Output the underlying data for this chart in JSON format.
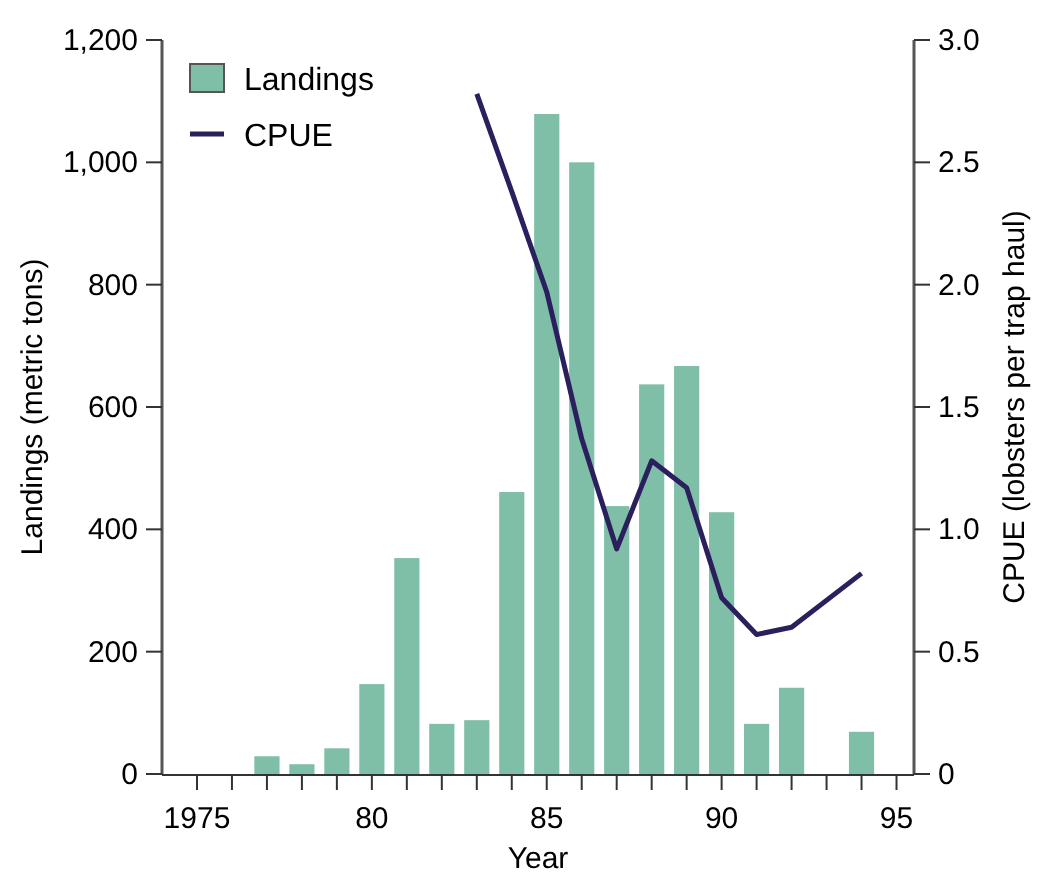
{
  "chart_data": {
    "type": "bar",
    "xlabel": "Year",
    "ylabel": "Landings (metric tons)",
    "y2label": "CPUE (lobsters per trap haul)",
    "x": [
      1977,
      1978,
      1979,
      1980,
      1981,
      1982,
      1983,
      1984,
      1985,
      1986,
      1987,
      1988,
      1989,
      1990,
      1991,
      1992,
      1994
    ],
    "series": [
      {
        "name": "Landings",
        "color": "#7fbfa8",
        "values": [
          29,
          16,
          42,
          147,
          353,
          82,
          88,
          461,
          1079,
          1000,
          438,
          637,
          667,
          428,
          82,
          141,
          69
        ]
      },
      {
        "name": "CPUE",
        "type": "line",
        "axis": "y2",
        "color": "#2b1f5e",
        "x": [
          1983,
          1984,
          1985,
          1986,
          1987,
          1988,
          1989,
          1990,
          1991,
          1992,
          1994
        ],
        "values": [
          2.78,
          2.38,
          1.97,
          1.37,
          0.92,
          1.28,
          1.17,
          0.72,
          0.57,
          0.6,
          0.82
        ]
      }
    ],
    "xlim": [
      1974,
      1995.5
    ],
    "xticks": [
      1975,
      {
        "value": 1976,
        "label": null
      },
      {
        "value": 1977,
        "label": null
      },
      {
        "value": 1978,
        "label": null
      },
      {
        "value": 1979,
        "label": null
      },
      {
        "value": 1980,
        "label": "80"
      },
      {
        "value": 1981,
        "label": null
      },
      {
        "value": 1982,
        "label": null
      },
      {
        "value": 1983,
        "label": null
      },
      {
        "value": 1984,
        "label": null
      },
      {
        "value": 1985,
        "label": "85"
      },
      {
        "value": 1986,
        "label": null
      },
      {
        "value": 1987,
        "label": null
      },
      {
        "value": 1988,
        "label": null
      },
      {
        "value": 1989,
        "label": null
      },
      {
        "value": 1990,
        "label": "90"
      },
      {
        "value": 1991,
        "label": null
      },
      {
        "value": 1992,
        "label": null
      },
      {
        "value": 1993,
        "label": null
      },
      {
        "value": 1994,
        "label": null
      },
      {
        "value": 1995,
        "label": "95"
      }
    ],
    "ylim": [
      0,
      1200
    ],
    "yticks": [
      0,
      200,
      400,
      600,
      800,
      {
        "value": 1000,
        "label": "1,000"
      },
      {
        "value": 1200,
        "label": "1,200"
      }
    ],
    "y2lim": [
      0,
      3
    ],
    "y2ticks": [
      0,
      0.5,
      {
        "value": 1,
        "label": "1.0"
      },
      1.5,
      {
        "value": 2,
        "label": "2.0"
      },
      2.5,
      {
        "value": 3,
        "label": "3.0"
      }
    ],
    "grid": false,
    "legend": "top left"
  }
}
